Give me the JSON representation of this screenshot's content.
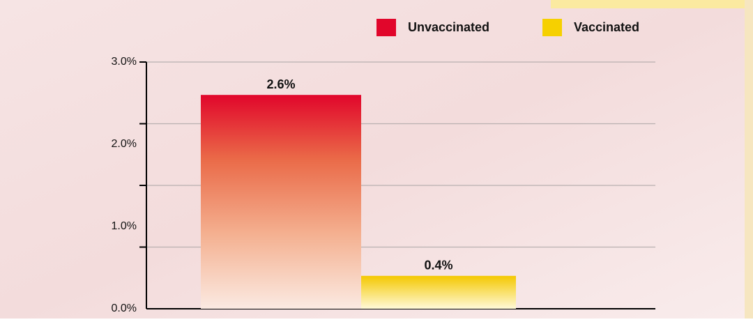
{
  "chart_data": {
    "type": "bar",
    "series": [
      {
        "name": "Unvaccinated",
        "color": "#e1062b",
        "values": [
          2.6
        ],
        "value_labels": [
          "2.6%"
        ]
      },
      {
        "name": "Vaccinated",
        "color": "#f6d000",
        "values": [
          0.4
        ],
        "value_labels": [
          "0.4%"
        ]
      }
    ],
    "ylim": [
      0,
      3
    ],
    "yticks": [
      {
        "value": 0,
        "label": "0.0%"
      },
      {
        "value": 1,
        "label": "1.0%"
      },
      {
        "value": 2,
        "label": "2.0%"
      },
      {
        "value": 3,
        "label": "3.0%"
      }
    ],
    "grid_ticks": [
      0.75,
      1.5,
      2.25,
      3
    ],
    "grid": true
  }
}
